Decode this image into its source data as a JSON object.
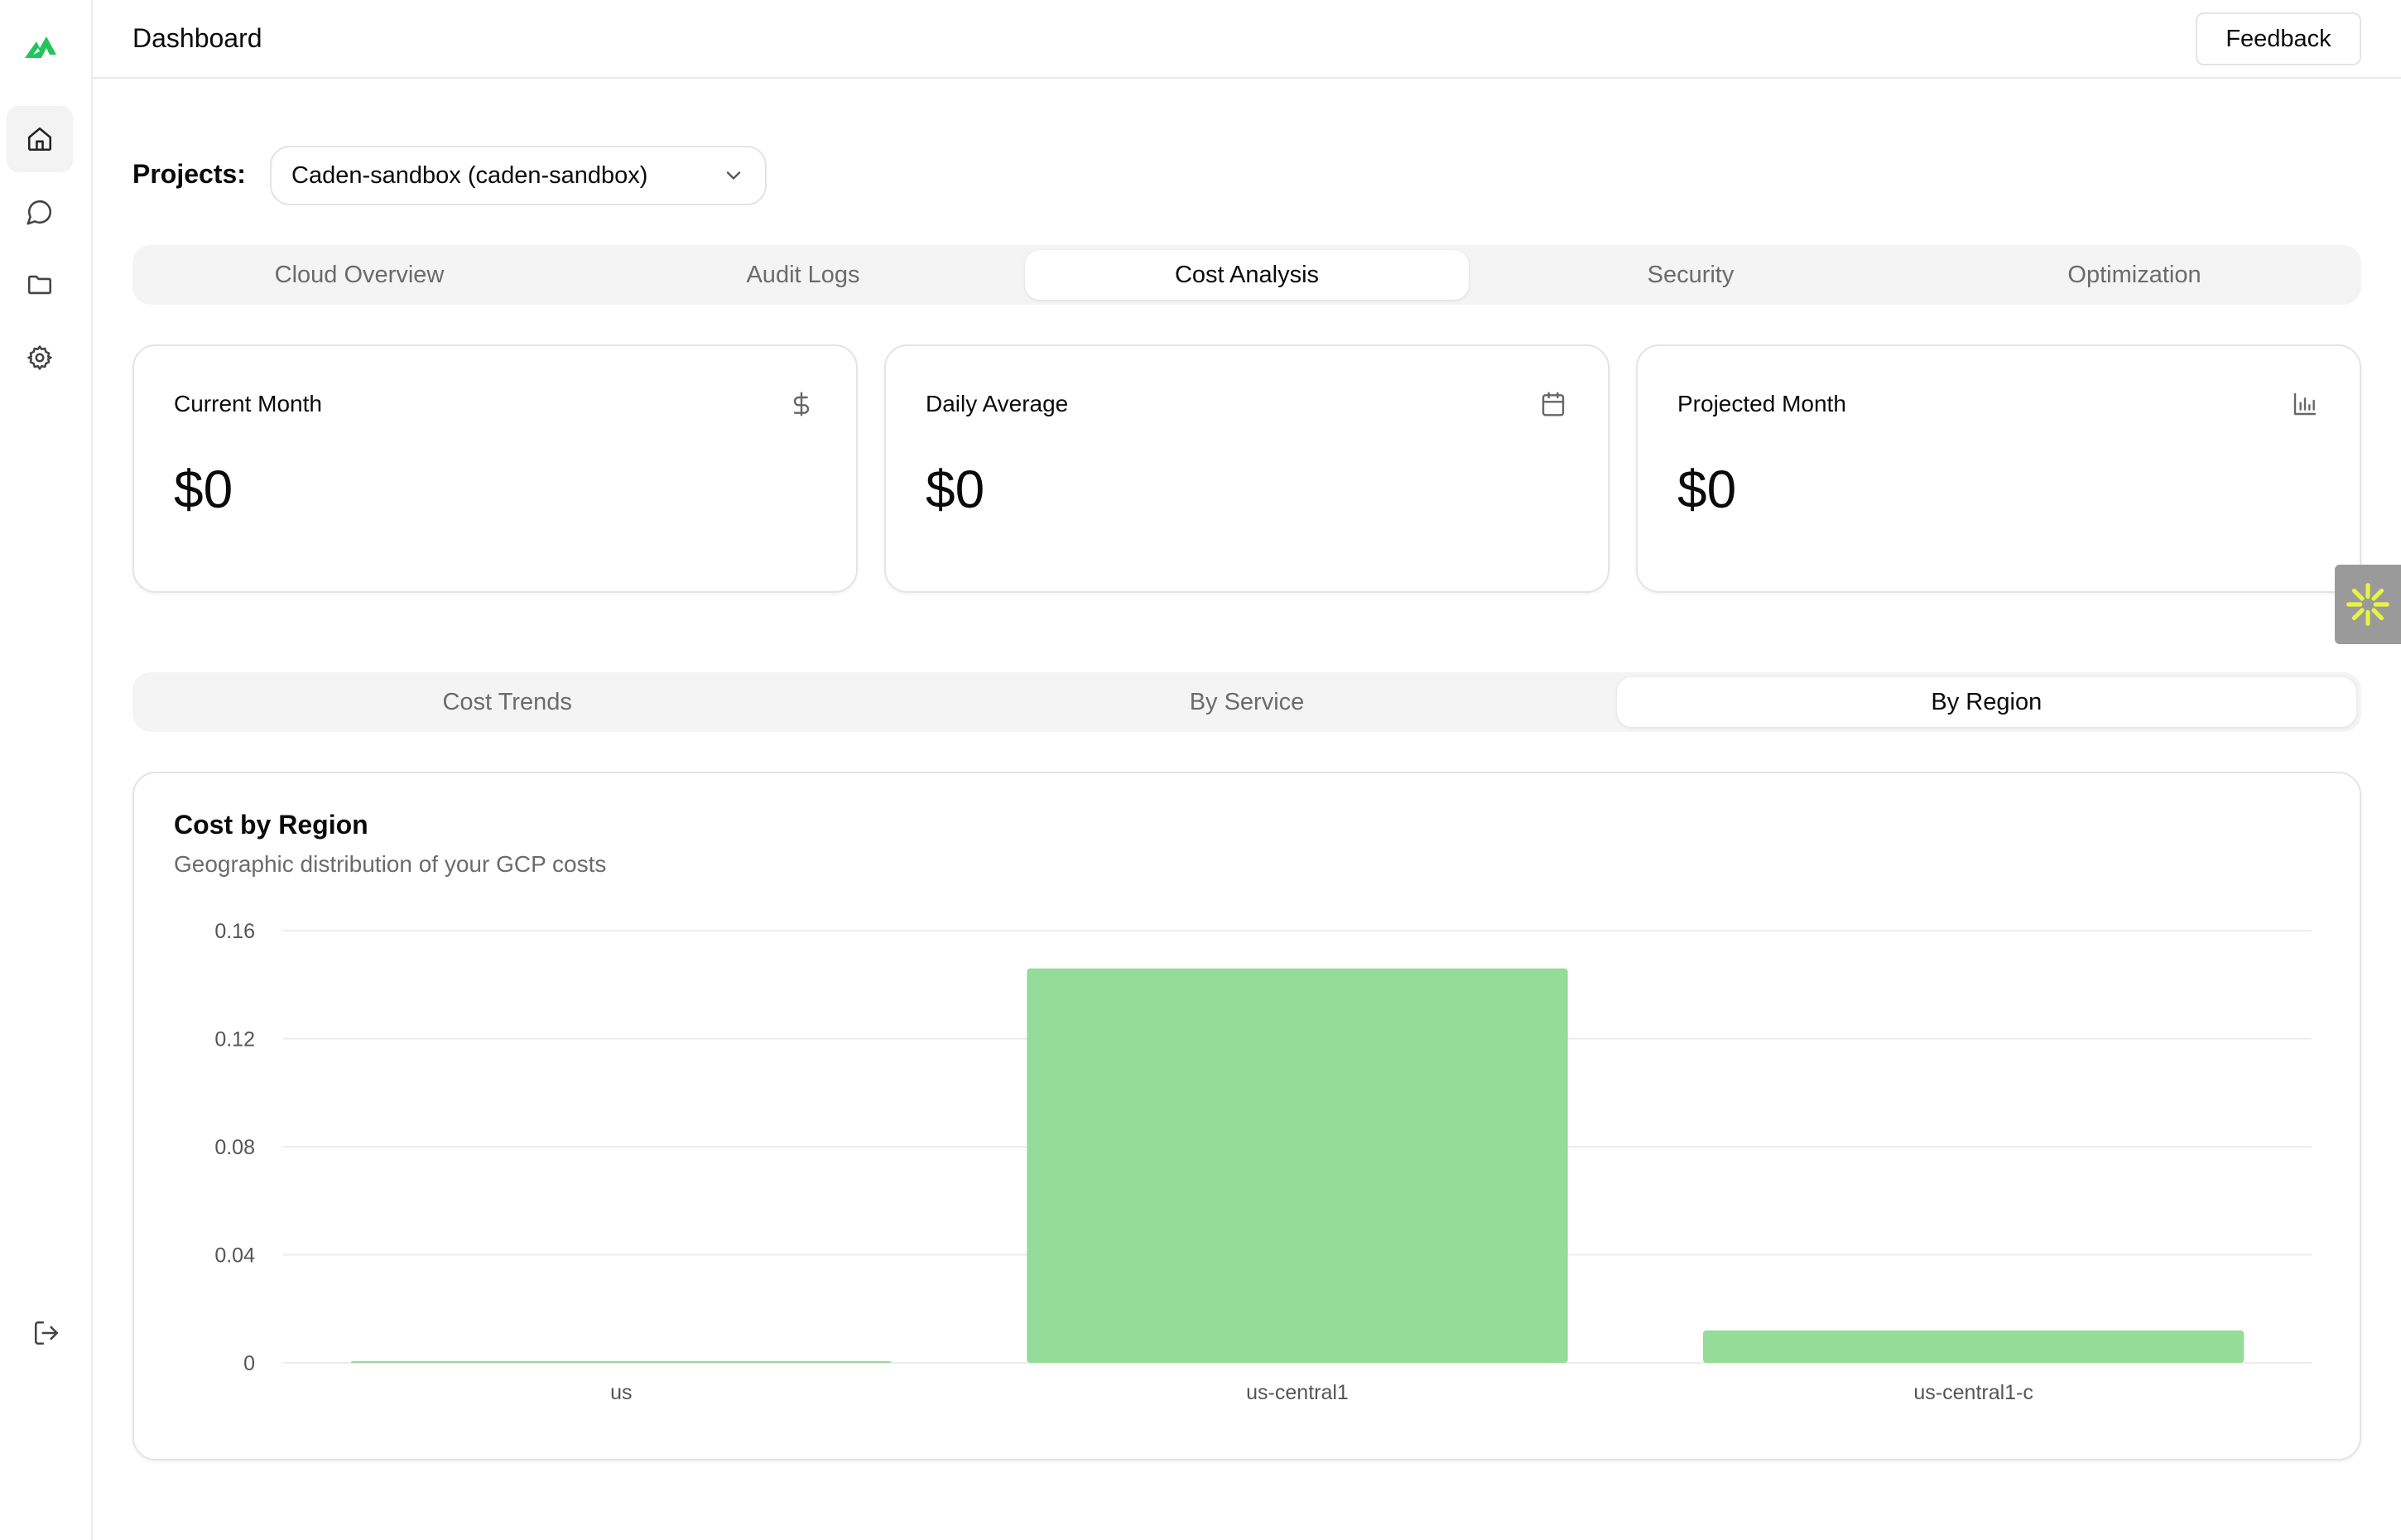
{
  "header": {
    "title": "Dashboard",
    "feedback_label": "Feedback"
  },
  "sidebar": {
    "items": [
      {
        "name": "home-icon",
        "active": true
      },
      {
        "name": "chat-icon",
        "active": false
      },
      {
        "name": "folder-icon",
        "active": false
      },
      {
        "name": "gear-icon",
        "active": false
      }
    ],
    "logout": "logout-icon"
  },
  "projects": {
    "label": "Projects:",
    "selected": "Caden-sandbox (caden-sandbox)"
  },
  "main_tabs": [
    {
      "label": "Cloud Overview",
      "active": false
    },
    {
      "label": "Audit Logs",
      "active": false
    },
    {
      "label": "Cost Analysis",
      "active": true
    },
    {
      "label": "Security",
      "active": false
    },
    {
      "label": "Optimization",
      "active": false
    }
  ],
  "stats": [
    {
      "label": "Current Month",
      "value": "$0",
      "icon": "dollar-icon"
    },
    {
      "label": "Daily Average",
      "value": "$0",
      "icon": "calendar-icon"
    },
    {
      "label": "Projected Month",
      "value": "$0",
      "icon": "bar-chart-icon"
    }
  ],
  "sub_tabs": [
    {
      "label": "Cost Trends",
      "active": false
    },
    {
      "label": "By Service",
      "active": false
    },
    {
      "label": "By Region",
      "active": true
    }
  ],
  "chart": {
    "title": "Cost by Region",
    "subtitle": "Geographic distribution of your GCP costs"
  },
  "colors": {
    "accent": "#22c55e",
    "bar": "#94dc98"
  },
  "chart_data": {
    "type": "bar",
    "categories": [
      "us",
      "us-central1",
      "us-central1-c"
    ],
    "values": [
      0.0003,
      0.146,
      0.012
    ],
    "yticks": [
      "0",
      "0.04",
      "0.08",
      "0.12",
      "0.16"
    ],
    "ylim": [
      0,
      0.16
    ],
    "xlabel": "",
    "ylabel": "",
    "grid": true
  }
}
